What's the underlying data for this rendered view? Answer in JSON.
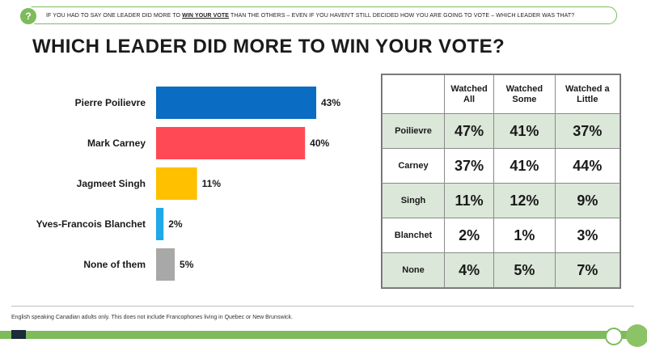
{
  "question": {
    "icon": "?",
    "prefix": "IF YOU HAD TO SAY ONE LEADER DID MORE TO ",
    "emphasis": "WIN YOUR VOTE",
    "suffix": " THAN THE OTHERS – EVEN IF YOU HAVEN'T STILL DECIDED HOW YOU ARE GOING TO VOTE – WHICH LEADER WAS THAT?"
  },
  "title": "WHICH LEADER DID MORE TO WIN YOUR VOTE?",
  "chart_data": {
    "type": "bar",
    "orientation": "horizontal",
    "categories": [
      "Pierre Poilievre",
      "Mark Carney",
      "Jagmeet Singh",
      "Yves-Francois Blanchet",
      "None of them"
    ],
    "values": [
      43,
      40,
      11,
      2,
      5
    ],
    "value_labels": [
      "43%",
      "40%",
      "11%",
      "2%",
      "5%"
    ],
    "colors": [
      "#0a6cc2",
      "#ff4a55",
      "#ffc000",
      "#1fa9e8",
      "#a8a8a8"
    ],
    "unit": "%",
    "xlim": [
      0,
      45
    ],
    "grid": false,
    "legend": "none"
  },
  "table": {
    "headers": [
      "Watched All",
      "Watched Some",
      "Watched a Little"
    ],
    "rows": [
      {
        "label": "Poilievre",
        "values": [
          "47%",
          "41%",
          "37%"
        ]
      },
      {
        "label": "Carney",
        "values": [
          "37%",
          "41%",
          "44%"
        ]
      },
      {
        "label": "Singh",
        "values": [
          "11%",
          "12%",
          "9%"
        ]
      },
      {
        "label": "Blanchet",
        "values": [
          "2%",
          "1%",
          "3%"
        ]
      },
      {
        "label": "None",
        "values": [
          "4%",
          "5%",
          "7%"
        ]
      }
    ],
    "shade_color": "#dbe7d8"
  },
  "footnote": "English speaking Canadian adults only. This does not include Francophones living in Quebec or New Brunswick.",
  "colors": {
    "accent": "#7dbb5c"
  }
}
